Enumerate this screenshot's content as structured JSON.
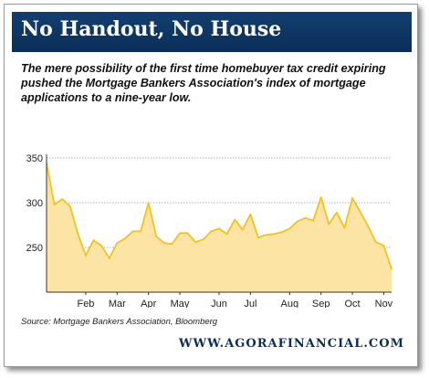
{
  "header": {
    "title": "No Handout, No House"
  },
  "subtitle": "The mere possibility of the first time homebuyer tax credit expiring pushed the Mortgage Bankers Association's index of mortgage applications to a nine-year low.",
  "source": "Source: Mortgage Bankers Association, Bloomberg",
  "website": "WWW.AGORAFINANCIAL.COM",
  "colors": {
    "title_bg": "#0b2e57",
    "area_fill": "#fbe4a4",
    "line": "#f5c21a",
    "grid": "#8aa0a8"
  },
  "chart_data": {
    "type": "area",
    "title": "",
    "xlabel": "",
    "ylabel": "",
    "x_range": [
      0,
      41
    ],
    "ylim": [
      200,
      350
    ],
    "yticks": [
      "350",
      "300",
      "250"
    ],
    "ytick_values": [
      350,
      300,
      250
    ],
    "xticks": [
      "Feb",
      "Mar",
      "Apr",
      "May",
      "Jun",
      "Jul",
      "Aug",
      "Sep",
      "Oct",
      "Nov"
    ],
    "xtick_positions": [
      5,
      9,
      13,
      17,
      22,
      26,
      31,
      35,
      39,
      43
    ],
    "grid": true,
    "series": [
      {
        "values": [
          344,
          298,
          304,
          296,
          265,
          241,
          258,
          252,
          238,
          255,
          260,
          268,
          268,
          300,
          262,
          255,
          254,
          266,
          266,
          256,
          259,
          268,
          271,
          265,
          281,
          270,
          287,
          261,
          264,
          265,
          267,
          271,
          279,
          283,
          280,
          306,
          276,
          289,
          272,
          305,
          290,
          274,
          256,
          252,
          226
        ]
      }
    ]
  }
}
